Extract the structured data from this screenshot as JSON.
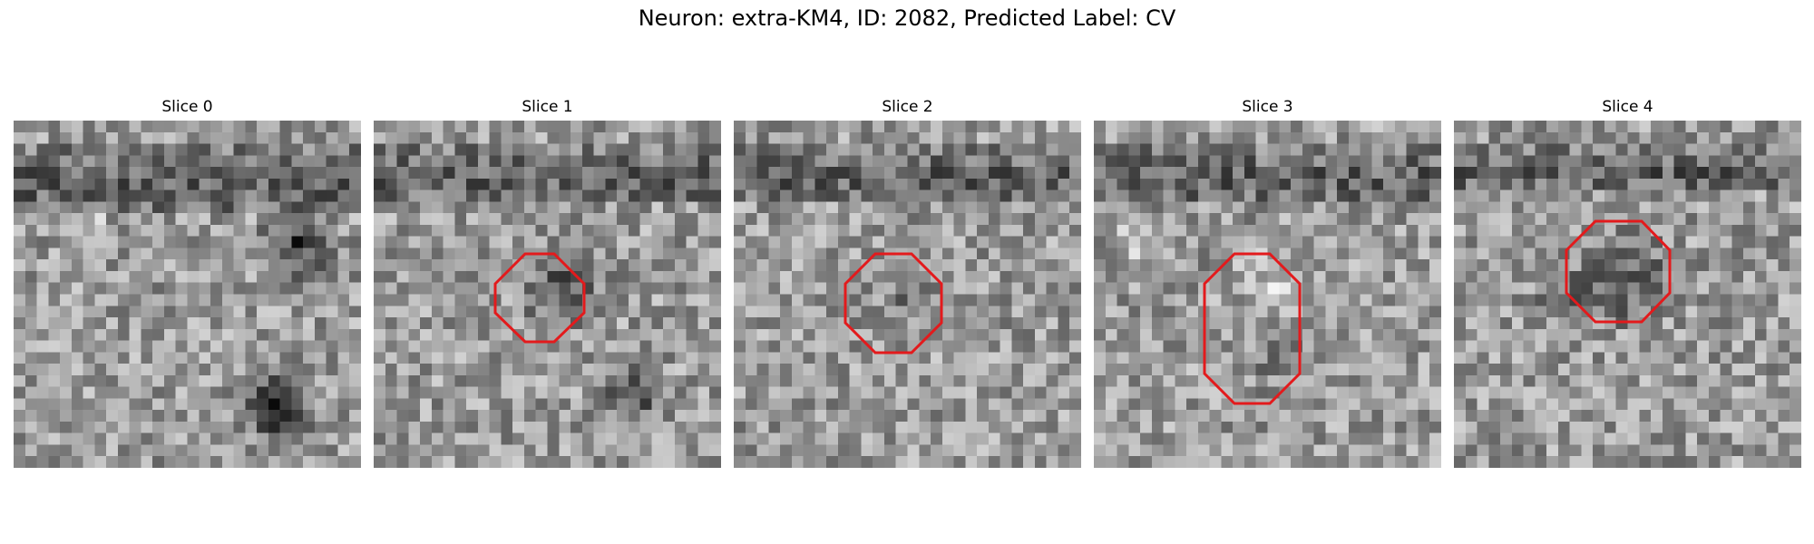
{
  "figure": {
    "title": "Neuron: extra-KM4, ID: 2082, Predicted Label: CV",
    "outline_color": "#e31a1c"
  },
  "panels": [
    {
      "title": "Slice 0",
      "has_outline": false
    },
    {
      "title": "Slice 1",
      "has_outline": true
    },
    {
      "title": "Slice 2",
      "has_outline": true
    },
    {
      "title": "Slice 3",
      "has_outline": true
    },
    {
      "title": "Slice 4",
      "has_outline": true
    }
  ]
}
